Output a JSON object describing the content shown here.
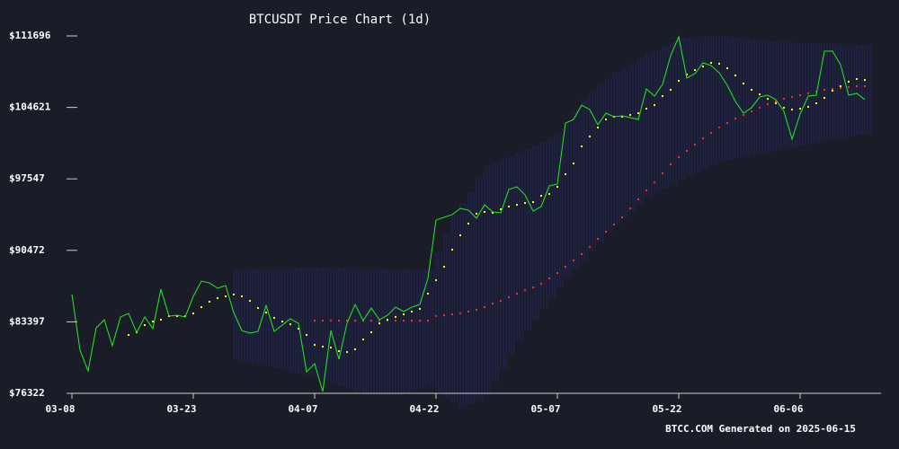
{
  "chart_data": {
    "type": "line",
    "title": "BTCUSDT Price Chart (1d)",
    "footer": "BTCC.COM Generated on 2025-06-15",
    "categories": [
      "03-08",
      null,
      null,
      null,
      null,
      null,
      null,
      null,
      null,
      null,
      null,
      null,
      null,
      null,
      null,
      "03-23",
      null,
      null,
      null,
      null,
      null,
      null,
      null,
      null,
      null,
      null,
      null,
      null,
      null,
      null,
      "04-07",
      null,
      null,
      null,
      null,
      null,
      null,
      null,
      null,
      null,
      null,
      null,
      null,
      null,
      null,
      "04-22",
      null,
      null,
      null,
      null,
      null,
      null,
      null,
      null,
      null,
      null,
      null,
      null,
      null,
      null,
      "05-07",
      null,
      null,
      null,
      null,
      null,
      null,
      null,
      null,
      null,
      null,
      null,
      null,
      null,
      null,
      "05-22",
      null,
      null,
      null,
      null,
      null,
      null,
      null,
      null,
      null,
      null,
      null,
      null,
      null,
      null,
      "06-06",
      null,
      null,
      null,
      null,
      null,
      null,
      null,
      null
    ],
    "ylim": [
      76322,
      111696
    ],
    "yticks": [
      {
        "value": 76322,
        "label": "$76322"
      },
      {
        "value": 83397,
        "label": "$83397"
      },
      {
        "value": 90472,
        "label": "$90472"
      },
      {
        "value": 97547,
        "label": "$97547"
      },
      {
        "value": 104621,
        "label": "$104621"
      },
      {
        "value": 111696,
        "label": "$111696"
      }
    ],
    "band": {
      "color": "#2a2d8c",
      "upper": [
        null,
        null,
        null,
        null,
        null,
        null,
        null,
        null,
        null,
        null,
        null,
        null,
        null,
        null,
        null,
        null,
        null,
        null,
        null,
        null,
        88590,
        88610,
        88630,
        88640,
        88660,
        88680,
        88700,
        88720,
        88730,
        88750,
        88770,
        88750,
        88730,
        88720,
        88700,
        88680,
        88660,
        88640,
        88630,
        88610,
        88590,
        88590,
        88590,
        88590,
        88590,
        90300,
        92100,
        93920,
        95100,
        96300,
        97600,
        98810,
        99100,
        99500,
        99800,
        100140,
        100500,
        100900,
        101200,
        101600,
        101920,
        103100,
        104300,
        105470,
        106100,
        106800,
        107500,
        108140,
        108600,
        109000,
        109500,
        109920,
        110300,
        110700,
        111100,
        111520,
        111560,
        111600,
        111640,
        111670,
        111700,
        111610,
        111520,
        111430,
        111340,
        111250,
        111200,
        111150,
        111090,
        111040,
        110980,
        110960,
        110940,
        110920,
        110890,
        110870,
        110850,
        110830,
        110810
      ],
      "lower": [
        null,
        null,
        null,
        null,
        null,
        null,
        null,
        null,
        null,
        null,
        null,
        null,
        null,
        null,
        null,
        null,
        null,
        null,
        null,
        null,
        79700,
        79520,
        79340,
        79170,
        78990,
        78810,
        78630,
        78450,
        78280,
        78100,
        77920,
        77620,
        77330,
        77030,
        76730,
        76440,
        76140,
        76140,
        76140,
        76140,
        76140,
        76360,
        76590,
        76810,
        77030,
        76480,
        75920,
        75370,
        74810,
        75250,
        75700,
        76140,
        77470,
        78810,
        80140,
        81480,
        82550,
        83610,
        84680,
        85750,
        86810,
        87700,
        88590,
        89480,
        90370,
        91260,
        92140,
        93030,
        93700,
        94360,
        95030,
        95700,
        96140,
        96590,
        97030,
        97470,
        97830,
        98180,
        98540,
        98890,
        99250,
        99430,
        99610,
        99780,
        99960,
        100140,
        100280,
        100420,
        100570,
        100710,
        100850,
        101000,
        101150,
        101300,
        101460,
        101610,
        101760,
        101910,
        101920
      ]
    },
    "series": [
      {
        "color": "#ff2a2a",
        "style": "dots",
        "values": [
          null,
          null,
          null,
          null,
          null,
          null,
          null,
          null,
          null,
          null,
          null,
          null,
          null,
          null,
          null,
          null,
          null,
          null,
          null,
          null,
          null,
          null,
          null,
          null,
          null,
          null,
          null,
          null,
          null,
          null,
          83520,
          83520,
          83520,
          83520,
          83520,
          83520,
          83520,
          83520,
          83520,
          83520,
          83520,
          83520,
          83520,
          83520,
          83520,
          83970,
          84050,
          84140,
          84230,
          84410,
          84590,
          84850,
          85210,
          85470,
          85830,
          86190,
          86540,
          86810,
          87160,
          87700,
          88230,
          88850,
          89480,
          90100,
          90810,
          91610,
          92320,
          93030,
          93740,
          94630,
          95520,
          96410,
          97210,
          98100,
          98990,
          99700,
          100320,
          100940,
          101560,
          102100,
          102630,
          103070,
          103520,
          103870,
          104230,
          104590,
          104940,
          105210,
          105470,
          105650,
          105830,
          106010,
          106190,
          106360,
          106450,
          106540,
          106630,
          106720,
          106720
        ]
      },
      {
        "color": "#ffff00",
        "style": "dots",
        "values": [
          null,
          null,
          null,
          null,
          null,
          null,
          null,
          82100,
          82360,
          83080,
          83430,
          83610,
          83960,
          83960,
          83960,
          84230,
          84850,
          85390,
          85740,
          85920,
          86100,
          85920,
          85470,
          84760,
          84320,
          83790,
          83430,
          83160,
          82720,
          82100,
          81120,
          80940,
          80850,
          80500,
          80410,
          80680,
          81650,
          82360,
          83250,
          83610,
          83880,
          84140,
          84410,
          84680,
          86190,
          87520,
          88850,
          90540,
          91960,
          93120,
          94100,
          94280,
          94190,
          94540,
          94810,
          94980,
          95160,
          95250,
          95870,
          96050,
          96760,
          98010,
          99070,
          100760,
          101740,
          102630,
          103430,
          103700,
          103700,
          103880,
          104050,
          104500,
          104850,
          105740,
          106360,
          107250,
          107870,
          108320,
          108670,
          109030,
          108940,
          108500,
          107790,
          106980,
          106360,
          105920,
          105470,
          105030,
          104590,
          104410,
          104500,
          104680,
          105030,
          105560,
          106270,
          106720,
          107160,
          107430,
          107340
        ]
      },
      {
        "color": "#22ee22",
        "style": "line",
        "values": [
          86100,
          80590,
          78540,
          82800,
          83600,
          81030,
          83880,
          84230,
          82360,
          83880,
          82720,
          86630,
          83960,
          84050,
          83880,
          85920,
          87430,
          87250,
          86720,
          86990,
          84320,
          82540,
          82280,
          82450,
          85030,
          82450,
          83080,
          83700,
          83250,
          78450,
          79250,
          76500,
          82540,
          79700,
          83250,
          85120,
          83520,
          84760,
          83610,
          84050,
          84850,
          84410,
          84850,
          85120,
          87700,
          93470,
          93740,
          94010,
          94630,
          94450,
          93650,
          94980,
          94280,
          94190,
          96500,
          96760,
          95960,
          94360,
          94810,
          96850,
          97030,
          103070,
          103430,
          104850,
          104410,
          102900,
          104050,
          103700,
          103790,
          103610,
          103430,
          106450,
          105740,
          106900,
          109740,
          111610,
          107520,
          107960,
          109030,
          108760,
          108050,
          106810,
          105210,
          104050,
          104590,
          105650,
          105830,
          105390,
          104230,
          101480,
          103960,
          105740,
          105830,
          110190,
          110190,
          108850,
          105830,
          106010,
          105390
        ]
      }
    ]
  }
}
